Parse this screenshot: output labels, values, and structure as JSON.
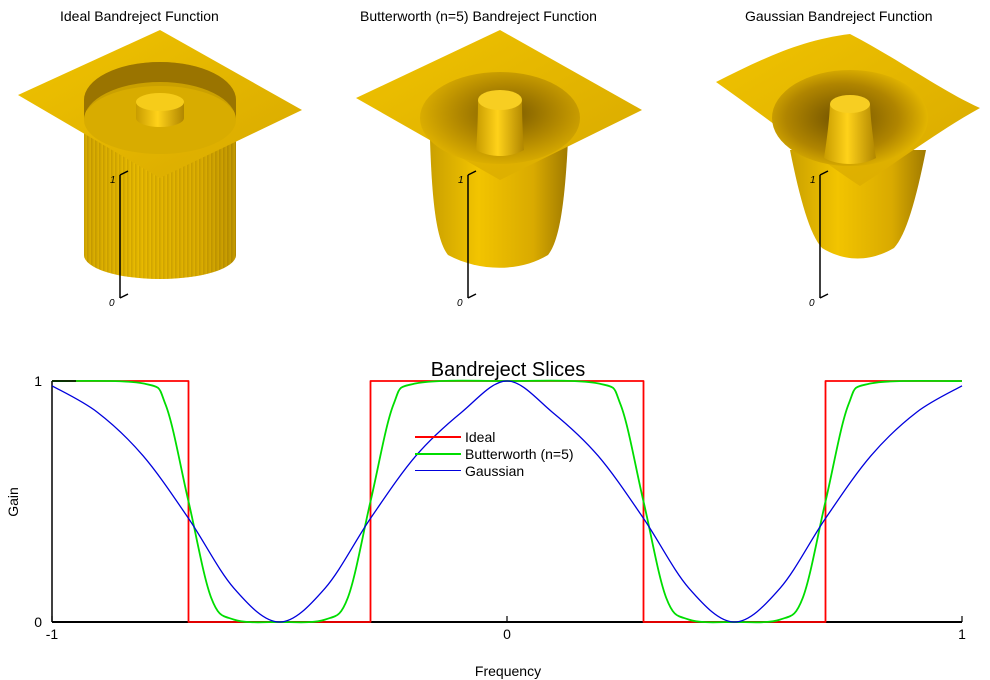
{
  "surface_panels": {
    "ideal_title": "Ideal Bandreject Function",
    "butterworth_title": "Butterworth (n=5) Bandreject Function",
    "gaussian_title": "Gaussian Bandreject Function",
    "z_tick_top": "1",
    "z_tick_bottom": "0",
    "surface_color": "#e8b400"
  },
  "chart_data": {
    "type": "line",
    "title": "Bandreject Slices",
    "xlabel": "Frequency",
    "ylabel": "Gain",
    "xlim": [
      -1,
      1
    ],
    "ylim": [
      0,
      1
    ],
    "x_ticks": [
      "-1",
      "0",
      "1"
    ],
    "y_ticks": [
      "0",
      "1"
    ],
    "legend_placement": "center",
    "band_centers": [
      -0.5,
      0.5
    ],
    "band_width": 0.4,
    "series": [
      {
        "name": "Ideal",
        "color": "#ff0000",
        "x": [
          -1,
          -0.7,
          -0.7,
          -0.3,
          -0.3,
          0.3,
          0.3,
          0.7,
          0.7,
          1
        ],
        "y": [
          1,
          1,
          0,
          0,
          1,
          1,
          0,
          0,
          1,
          1
        ]
      },
      {
        "name": "Butterworth (n=5)",
        "color": "#00dd00",
        "x": [
          -1,
          -0.8,
          -0.75,
          -0.7,
          -0.65,
          -0.6,
          -0.5,
          -0.4,
          -0.35,
          -0.3,
          -0.25,
          -0.2,
          0,
          0.2,
          0.25,
          0.3,
          0.35,
          0.4,
          0.5,
          0.6,
          0.65,
          0.7,
          0.75,
          0.8,
          1
        ],
        "y": [
          1,
          0.99,
          0.9,
          0.5,
          0.1,
          0.01,
          0,
          0.01,
          0.1,
          0.5,
          0.9,
          0.99,
          1,
          0.99,
          0.9,
          0.5,
          0.1,
          0.01,
          0,
          0.01,
          0.1,
          0.5,
          0.9,
          0.99,
          1
        ]
      },
      {
        "name": "Gaussian",
        "color": "#0000dd",
        "x": [
          -1,
          -0.9,
          -0.8,
          -0.7,
          -0.6,
          -0.5,
          -0.4,
          -0.3,
          -0.2,
          -0.1,
          0,
          0.1,
          0.2,
          0.3,
          0.4,
          0.5,
          0.6,
          0.7,
          0.8,
          0.9,
          1
        ],
        "y": [
          0.98,
          0.87,
          0.69,
          0.43,
          0.14,
          0,
          0.14,
          0.43,
          0.69,
          0.87,
          1,
          0.87,
          0.69,
          0.43,
          0.14,
          0,
          0.14,
          0.43,
          0.69,
          0.87,
          0.98
        ]
      }
    ]
  }
}
